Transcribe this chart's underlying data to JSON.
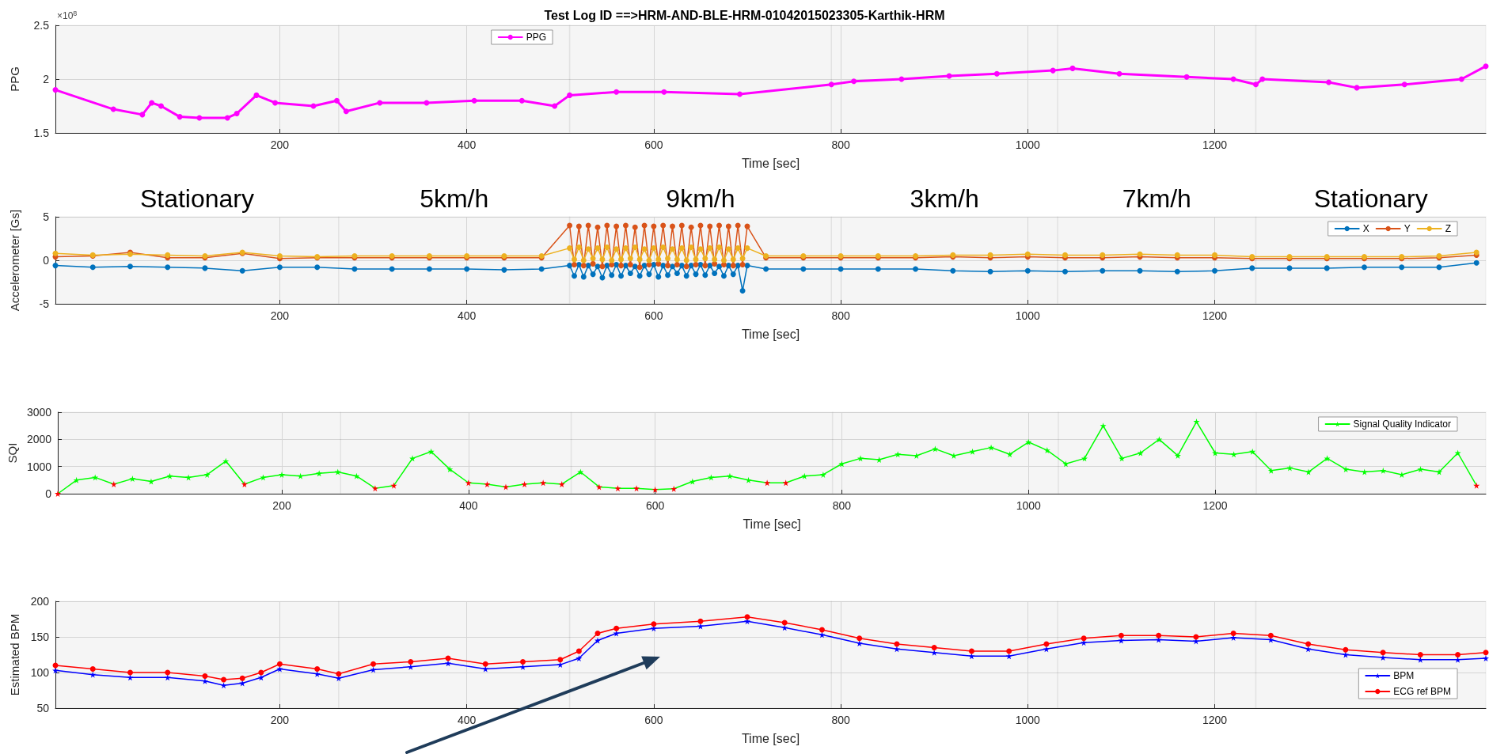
{
  "chart_data": [
    {
      "type": "line",
      "title": "Test Log ID ==>HRM-AND-BLE-HRM-01042015023305-Karthik-HRM",
      "xlabel": "Time [sec]",
      "ylabel": "PPG",
      "annotations": [
        "×10$^{8}$"
      ],
      "xlim": [
        -40,
        1490
      ],
      "ylim": [
        1.5,
        2.5
      ],
      "xticks": [
        200,
        400,
        600,
        800,
        1000,
        1200
      ],
      "yticks": [
        1.5,
        2,
        2.5
      ],
      "grid": true,
      "legend": "top",
      "marker": "circle",
      "bands": [
        {
          "axis": "x",
          "from": -40,
          "to": 263
        },
        {
          "axis": "x",
          "from": 263,
          "to": 510
        },
        {
          "axis": "x",
          "from": 510,
          "to": 790
        },
        {
          "axis": "x",
          "from": 790,
          "to": 1032
        },
        {
          "axis": "x",
          "from": 1032,
          "to": 1244
        },
        {
          "axis": "x",
          "from": 1244,
          "to": 1490
        }
      ],
      "series": [
        {
          "name": "PPG",
          "color": "#ff00ff",
          "x": [
            -40,
            22,
            53,
            63,
            73,
            93,
            114,
            144,
            154,
            175,
            195,
            236,
            261,
            271,
            307,
            357,
            408,
            459,
            494,
            510,
            560,
            611,
            692,
            790,
            814,
            865,
            916,
            967,
            1027,
            1048,
            1098,
            1170,
            1220,
            1244,
            1251,
            1322,
            1352,
            1403,
            1464,
            1490
          ],
          "values": [
            1.9,
            1.72,
            1.67,
            1.78,
            1.75,
            1.65,
            1.64,
            1.64,
            1.68,
            1.85,
            1.78,
            1.75,
            1.8,
            1.7,
            1.78,
            1.78,
            1.8,
            1.8,
            1.75,
            1.85,
            1.88,
            1.88,
            1.86,
            1.95,
            1.98,
            2.0,
            2.03,
            2.05,
            2.08,
            2.1,
            2.05,
            2.02,
            2.0,
            1.95,
            2.0,
            1.97,
            1.92,
            1.95,
            2.0,
            2.12
          ]
        }
      ]
    },
    {
      "type": "line",
      "xlabel": "Time [sec]",
      "ylabel": "Accelerometer [Gs]",
      "xlim": [
        -40,
        1490
      ],
      "ylim": [
        -5,
        5
      ],
      "xticks": [
        200,
        400,
        600,
        800,
        1000,
        1200
      ],
      "yticks": [
        -5,
        0,
        5
      ],
      "grid": true,
      "legend": "top right",
      "marker": "circle",
      "bands": [
        {
          "axis": "x",
          "from": -40,
          "to": 263,
          "label": "Stationary"
        },
        {
          "axis": "x",
          "from": 263,
          "to": 510,
          "label": "5km/h"
        },
        {
          "axis": "x",
          "from": 510,
          "to": 790,
          "label": "9km/h"
        },
        {
          "axis": "x",
          "from": 790,
          "to": 1032,
          "label": "3km/h"
        },
        {
          "axis": "x",
          "from": 1032,
          "to": 1244,
          "label": "7km/h"
        },
        {
          "axis": "x",
          "from": 1244,
          "to": 1490,
          "label": "Stationary"
        }
      ],
      "x": [
        -40,
        0,
        40,
        80,
        120,
        160,
        200,
        240,
        280,
        320,
        360,
        400,
        440,
        480,
        510,
        515,
        520,
        525,
        530,
        535,
        540,
        545,
        550,
        555,
        560,
        565,
        570,
        575,
        580,
        585,
        590,
        595,
        600,
        605,
        610,
        615,
        620,
        625,
        630,
        635,
        640,
        645,
        650,
        655,
        660,
        665,
        670,
        675,
        680,
        685,
        690,
        695,
        700,
        720,
        760,
        800,
        840,
        880,
        920,
        960,
        1000,
        1040,
        1080,
        1120,
        1160,
        1200,
        1240,
        1280,
        1320,
        1360,
        1400,
        1440,
        1480
      ],
      "series": [
        {
          "name": "X",
          "color": "#0072bd",
          "values": [
            -0.6,
            -0.8,
            -0.7,
            -0.8,
            -0.9,
            -1.2,
            -0.8,
            -0.8,
            -1.0,
            -1.0,
            -1.0,
            -1.0,
            -1.1,
            -1.0,
            -0.6,
            -1.8,
            -0.5,
            -1.9,
            -0.6,
            -1.6,
            -0.7,
            -2.0,
            -0.6,
            -1.7,
            -0.5,
            -1.8,
            -0.6,
            -1.5,
            -0.7,
            -1.8,
            -0.6,
            -1.6,
            -0.5,
            -1.9,
            -0.6,
            -1.7,
            -0.7,
            -1.5,
            -0.6,
            -1.8,
            -0.6,
            -1.6,
            -0.5,
            -1.7,
            -0.6,
            -1.5,
            -0.7,
            -1.8,
            -0.6,
            -1.6,
            -0.6,
            -3.5,
            -0.6,
            -1.0,
            -1.0,
            -1.0,
            -1.0,
            -1.0,
            -1.2,
            -1.3,
            -1.2,
            -1.3,
            -1.2,
            -1.2,
            -1.3,
            -1.2,
            -0.9,
            -0.9,
            -0.9,
            -0.8,
            -0.8,
            -0.8,
            -0.3
          ]
        },
        {
          "name": "Y",
          "color": "#d95319",
          "values": [
            0.4,
            0.5,
            0.9,
            0.3,
            0.3,
            0.8,
            0.2,
            0.3,
            0.3,
            0.3,
            0.3,
            0.3,
            0.3,
            0.3,
            4,
            -0.5,
            3.9,
            -0.6,
            4,
            -0.4,
            3.8,
            -0.7,
            4,
            -0.5,
            3.9,
            -0.6,
            4,
            -0.5,
            3.8,
            -0.8,
            4,
            -0.5,
            3.9,
            -0.4,
            4,
            -0.6,
            3.9,
            -0.5,
            4,
            -0.7,
            3.8,
            -0.5,
            4,
            -0.6,
            3.9,
            -0.4,
            4,
            -0.5,
            3.9,
            -0.6,
            4,
            -0.5,
            3.9,
            0.3,
            0.3,
            0.3,
            0.3,
            0.3,
            0.4,
            0.3,
            0.4,
            0.3,
            0.3,
            0.4,
            0.3,
            0.3,
            0.2,
            0.2,
            0.2,
            0.2,
            0.2,
            0.3,
            0.6
          ]
        },
        {
          "name": "Z",
          "color": "#edb120",
          "values": [
            0.8,
            0.6,
            0.7,
            0.6,
            0.5,
            0.9,
            0.5,
            0.4,
            0.5,
            0.5,
            0.5,
            0.5,
            0.5,
            0.5,
            1.4,
            0.1,
            1.5,
            0.0,
            1.3,
            0.2,
            1.4,
            0.1,
            1.5,
            0.0,
            1.3,
            0.1,
            1.4,
            0.2,
            1.5,
            0.1,
            1.3,
            0.0,
            1.4,
            0.1,
            1.5,
            0.2,
            1.3,
            0.1,
            1.4,
            0.0,
            1.5,
            0.1,
            1.3,
            0.2,
            1.4,
            0.1,
            1.5,
            0.0,
            1.3,
            0.1,
            1.4,
            0.2,
            1.4,
            0.5,
            0.5,
            0.5,
            0.5,
            0.5,
            0.6,
            0.6,
            0.7,
            0.6,
            0.6,
            0.7,
            0.6,
            0.6,
            0.4,
            0.4,
            0.4,
            0.4,
            0.4,
            0.5,
            0.9
          ]
        }
      ]
    },
    {
      "type": "line",
      "xlabel": "Time [sec]",
      "ylabel": "SQI",
      "xlim": [
        -40,
        1490
      ],
      "ylim": [
        0,
        3000
      ],
      "xticks": [
        200,
        400,
        600,
        800,
        1000,
        1200
      ],
      "yticks": [
        0,
        1000,
        2000,
        3000
      ],
      "grid": true,
      "legend": "top right",
      "marker": "star",
      "bands": [
        {
          "axis": "x",
          "from": -40,
          "to": 263
        },
        {
          "axis": "x",
          "from": 263,
          "to": 510
        },
        {
          "axis": "x",
          "from": 510,
          "to": 790
        },
        {
          "axis": "x",
          "from": 790,
          "to": 1032
        },
        {
          "axis": "x",
          "from": 1032,
          "to": 1244
        },
        {
          "axis": "x",
          "from": 1244,
          "to": 1490
        }
      ],
      "series": [
        {
          "name": "Signal Quality Indicator",
          "color": "#00ff00",
          "x": [
            -40,
            -20,
            0,
            20,
            40,
            60,
            80,
            100,
            120,
            140,
            160,
            180,
            200,
            220,
            240,
            260,
            280,
            300,
            320,
            340,
            360,
            380,
            400,
            420,
            440,
            460,
            480,
            500,
            520,
            540,
            560,
            580,
            600,
            620,
            640,
            660,
            680,
            700,
            720,
            740,
            760,
            780,
            800,
            820,
            840,
            860,
            880,
            900,
            920,
            940,
            960,
            980,
            1000,
            1020,
            1040,
            1060,
            1080,
            1100,
            1120,
            1140,
            1160,
            1180,
            1200,
            1220,
            1240,
            1260,
            1280,
            1300,
            1320,
            1340,
            1360,
            1380,
            1400,
            1420,
            1440,
            1460,
            1480
          ],
          "values": [
            0,
            500,
            600,
            350,
            550,
            450,
            650,
            600,
            700,
            1200,
            350,
            600,
            700,
            650,
            750,
            800,
            650,
            200,
            300,
            1300,
            1550,
            900,
            400,
            350,
            250,
            350,
            400,
            350,
            800,
            250,
            200,
            200,
            150,
            180,
            450,
            600,
            650,
            500,
            400,
            400,
            650,
            700,
            1100,
            1300,
            1250,
            1450,
            1400,
            1650,
            1400,
            1550,
            1700,
            1450,
            1900,
            1600,
            1100,
            1300,
            2500,
            1300,
            1500,
            2000,
            1400,
            2650,
            1500,
            1450,
            1550,
            850,
            950,
            800,
            1300,
            900,
            800,
            850,
            700,
            900,
            800,
            1500,
            300
          ],
          "colors": [
            "#ff0000",
            "#00ff00",
            "#00ff00",
            "#ff0000",
            "#00ff00",
            "#00ff00",
            "#00ff00",
            "#00ff00",
            "#00ff00",
            "#00ff00",
            "#ff0000",
            "#00ff00",
            "#00ff00",
            "#00ff00",
            "#00ff00",
            "#00ff00",
            "#00ff00",
            "#ff0000",
            "#ff0000",
            "#00ff00",
            "#00ff00",
            "#00ff00",
            "#ff0000",
            "#ff0000",
            "#ff0000",
            "#ff0000",
            "#ff0000",
            "#ff0000",
            "#00ff00",
            "#ff0000",
            "#ff0000",
            "#ff0000",
            "#ff0000",
            "#ff0000",
            "#00ff00",
            "#00ff00",
            "#00ff00",
            "#00ff00",
            "#ff0000",
            "#ff0000",
            "#00ff00",
            "#00ff00",
            "#00ff00",
            "#00ff00",
            "#00ff00",
            "#00ff00",
            "#00ff00",
            "#00ff00",
            "#00ff00",
            "#00ff00",
            "#00ff00",
            "#00ff00",
            "#00ff00",
            "#00ff00",
            "#00ff00",
            "#00ff00",
            "#00ff00",
            "#00ff00",
            "#00ff00",
            "#00ff00",
            "#00ff00",
            "#00ff00",
            "#00ff00",
            "#00ff00",
            "#00ff00",
            "#00ff00",
            "#00ff00",
            "#00ff00",
            "#00ff00",
            "#00ff00",
            "#00ff00",
            "#00ff00",
            "#00ff00",
            "#00ff00",
            "#00ff00",
            "#00ff00",
            "#ff0000"
          ]
        }
      ]
    },
    {
      "type": "line",
      "xlabel": "Time [sec]",
      "ylabel": "Estimated BPM",
      "xlim": [
        -40,
        1490
      ],
      "ylim": [
        50,
        200
      ],
      "xticks": [
        200,
        400,
        600,
        800,
        1000,
        1200
      ],
      "yticks": [
        50,
        100,
        150,
        200
      ],
      "grid": true,
      "legend": "bottom right",
      "bands": [
        {
          "axis": "x",
          "from": -40,
          "to": 263
        },
        {
          "axis": "x",
          "from": 263,
          "to": 510
        },
        {
          "axis": "x",
          "from": 510,
          "to": 790
        },
        {
          "axis": "x",
          "from": 790,
          "to": 1032
        },
        {
          "axis": "x",
          "from": 1032,
          "to": 1244
        },
        {
          "axis": "x",
          "from": 1244,
          "to": 1490
        }
      ],
      "x": [
        -40,
        0,
        40,
        80,
        120,
        140,
        160,
        180,
        200,
        240,
        263,
        300,
        340,
        380,
        420,
        460,
        500,
        520,
        540,
        560,
        600,
        650,
        700,
        740,
        780,
        820,
        860,
        900,
        940,
        980,
        1020,
        1060,
        1100,
        1140,
        1180,
        1220,
        1260,
        1300,
        1340,
        1380,
        1420,
        1460,
        1490
      ],
      "series": [
        {
          "name": "BPM",
          "color": "#0000ff",
          "marker": "star",
          "values": [
            103,
            97,
            93,
            93,
            88,
            82,
            85,
            93,
            105,
            98,
            92,
            104,
            108,
            113,
            105,
            108,
            111,
            120,
            145,
            155,
            162,
            165,
            172,
            163,
            153,
            141,
            133,
            128,
            123,
            123,
            133,
            142,
            145,
            146,
            144,
            149,
            146,
            133,
            125,
            121,
            118,
            118,
            120
          ]
        },
        {
          "name": "ECG ref BPM",
          "color": "#ff0000",
          "marker": "circle",
          "values": [
            110,
            105,
            100,
            100,
            95,
            90,
            92,
            100,
            112,
            105,
            98,
            112,
            115,
            120,
            112,
            115,
            118,
            130,
            155,
            162,
            168,
            172,
            178,
            170,
            160,
            148,
            140,
            135,
            130,
            130,
            140,
            148,
            152,
            152,
            150,
            155,
            152,
            140,
            132,
            128,
            125,
            125,
            128
          ]
        }
      ]
    }
  ]
}
